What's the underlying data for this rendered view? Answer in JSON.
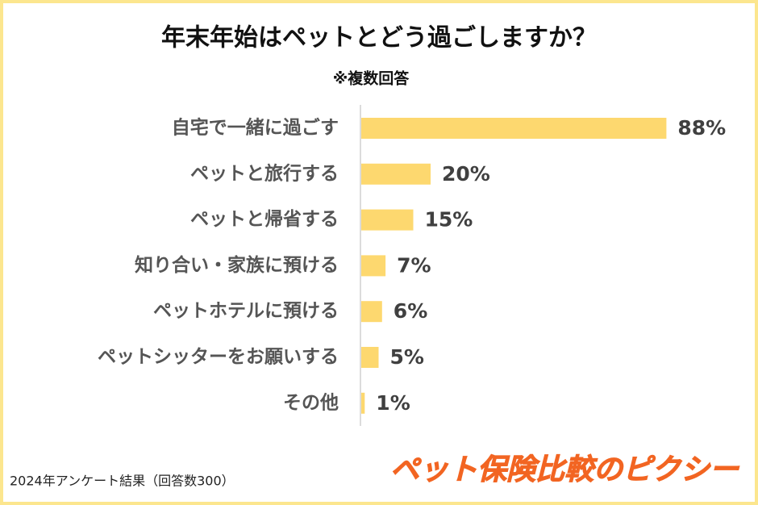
{
  "chart_data": {
    "type": "hbar",
    "title": "年末年始はペットとどう過ごしますか？",
    "subtitle": "※複数回答",
    "categories": [
      "自宅で一緒に過ごす",
      "ペットと旅行する",
      "ペットと帰省する",
      "知り合い・家族に預ける",
      "ペットホテルに預ける",
      "ペットシッターをお願いする",
      "その他"
    ],
    "values": [
      88,
      20,
      15,
      7,
      6,
      5,
      1
    ],
    "value_labels": [
      "88%",
      "20%",
      "15%",
      "7%",
      "6%",
      "5%",
      "1%"
    ],
    "color": "#fdd86f",
    "note": "2024年アンケート結果（回答数300）",
    "logo": "ペット保険比較のピクシー"
  }
}
